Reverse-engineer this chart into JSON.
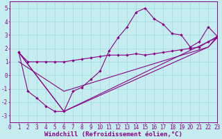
{
  "xlabel": "Windchill (Refroidissement éolien,°C)",
  "background_color": "#c5ecee",
  "line_color": "#880088",
  "xlim": [
    0,
    23
  ],
  "ylim": [
    -3.5,
    5.5
  ],
  "xtick_vals": [
    0,
    1,
    2,
    3,
    4,
    5,
    6,
    7,
    8,
    9,
    10,
    11,
    12,
    13,
    14,
    15,
    16,
    17,
    18,
    19,
    20,
    21,
    22,
    23
  ],
  "ytick_vals": [
    -3,
    -2,
    -1,
    0,
    1,
    2,
    3,
    4,
    5
  ],
  "grid_color": "#a0d8d8",
  "tick_fontsize": 5.5,
  "xlabel_fontsize": 6.5,
  "s1x": [
    1,
    2,
    3,
    4,
    5,
    6,
    7,
    8,
    9,
    10,
    11,
    12,
    13,
    14,
    15,
    16,
    17,
    18,
    19,
    20,
    21,
    22,
    23
  ],
  "s1y": [
    1.7,
    1.0,
    1.0,
    1.0,
    1.0,
    1.0,
    1.1,
    1.2,
    1.3,
    1.4,
    1.5,
    1.5,
    1.5,
    1.6,
    1.5,
    1.6,
    1.7,
    1.8,
    1.9,
    2.0,
    2.1,
    2.5,
    2.8
  ],
  "s2x": [
    1,
    2,
    3,
    4,
    5,
    6,
    7,
    8,
    9,
    10,
    11,
    12,
    13,
    14,
    15,
    16,
    17,
    18,
    19,
    20,
    21,
    22,
    23
  ],
  "s2y": [
    1.7,
    -1.2,
    -1.7,
    -2.3,
    -2.7,
    -2.7,
    -1.2,
    -0.9,
    -0.3,
    0.3,
    1.8,
    2.8,
    3.6,
    4.7,
    5.0,
    4.2,
    3.8,
    3.1,
    3.0,
    2.1,
    2.5,
    3.6,
    2.9
  ],
  "s3x": [
    1,
    6,
    22,
    23
  ],
  "s3y": [
    1.7,
    -2.7,
    2.5,
    2.9
  ],
  "s4x": [
    1,
    6,
    22,
    23
  ],
  "s4y": [
    1.7,
    -2.7,
    2.1,
    2.9
  ],
  "s5x": [
    1,
    6,
    22,
    23
  ],
  "s5y": [
    1.0,
    -1.2,
    2.1,
    2.8
  ]
}
